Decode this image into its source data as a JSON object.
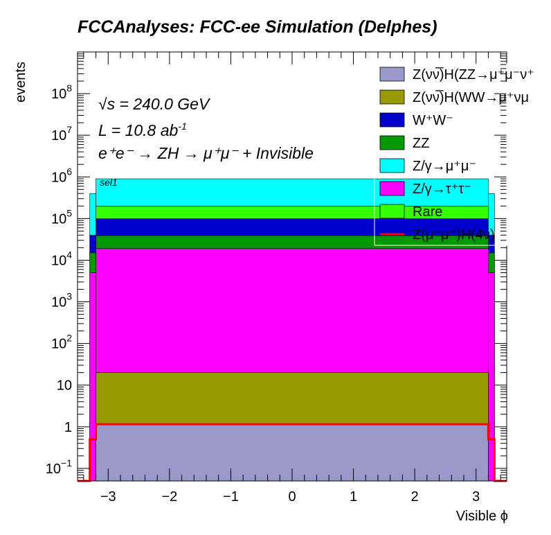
{
  "chart_data": {
    "type": "area",
    "stacked": true,
    "title": "FCCAnalyses: FCC-ee Simulation (Delphes)",
    "xlabel": "Visible ϕ",
    "ylabel": "events",
    "xlim": [
      -3.5,
      3.5
    ],
    "ylim": [
      0.05,
      1000000000.0
    ],
    "log_y": true,
    "grid": false,
    "legend_position": "top-right",
    "x_ticks": [
      -3,
      -2,
      -1,
      0,
      1,
      2,
      3
    ],
    "x_tick_labels": [
      "−3",
      "−2",
      "−1",
      "0",
      "1",
      "2",
      "3"
    ],
    "y_ticks": [
      0.1,
      1,
      10,
      100,
      1000,
      10000,
      100000,
      1000000,
      10000000,
      100000000
    ],
    "y_tick_labels": [
      {
        "base": "10",
        "exp": "−1"
      },
      {
        "base": "1",
        "exp": ""
      },
      {
        "base": "10",
        "exp": ""
      },
      {
        "base": "10",
        "exp": "2"
      },
      {
        "base": "10",
        "exp": "3"
      },
      {
        "base": "10",
        "exp": "4"
      },
      {
        "base": "10",
        "exp": "5"
      },
      {
        "base": "10",
        "exp": "6"
      },
      {
        "base": "10",
        "exp": "7"
      },
      {
        "base": "10",
        "exp": "8"
      }
    ],
    "annotations": {
      "sqrt_s_sym": "√s",
      "sqrt_s_val": " = 240.0 GeV",
      "lumi_main": "L = 10.8 ab",
      "lumi_exp": "-1",
      "process": "e⁺e⁻ → ZH → μ⁺μ⁻ + Invisible",
      "selection": "sel1"
    },
    "edge_bins": {
      "x_ranges": [
        [
          -3.3,
          -3.2
        ],
        [
          3.2,
          3.3
        ]
      ],
      "stack_totals": [
        400000,
        400000
      ],
      "z_gamma_tautau_top": 5000,
      "ww_top": 40000,
      "zz_top": 15000,
      "signal": 0.5
    },
    "central_range": [
      -3.2,
      3.2
    ],
    "series": [
      {
        "name": "Z(νν̅)H(ZZ→μ⁺μ⁻ν⁺ν⁻)",
        "legend": "Z(νν̅)H(ZZ→μ⁺μ⁻ν⁺",
        "color": "#9999cc",
        "value": 1.15
      },
      {
        "name": "Z(νν̅)H(WW→μ⁺νμ⁻ν)",
        "legend": "Z(νν̅)H(WW→μ⁺νμ",
        "color": "#999900",
        "value": 19
      },
      {
        "name": "Z/γ→τ⁺τ⁻",
        "legend": "Z/γ→τ⁺τ⁻",
        "color": "#ff00ff",
        "value": 19000
      },
      {
        "name": "ZZ",
        "legend": "ZZ",
        "color": "#009900",
        "value": 20000
      },
      {
        "name": "W⁺W⁻",
        "legend": "W⁺W⁻",
        "color": "#0000cc",
        "value": 60000
      },
      {
        "name": "Rare",
        "legend": "Rare",
        "color": "#33ff00",
        "value": 100000
      },
      {
        "name": "Z/γ→μ⁺μ⁻",
        "legend": "Z/γ→μ⁺μ⁻",
        "color": "#00ffff",
        "value": 700000
      }
    ],
    "signal": {
      "name": "Z(μ⁻μ⁺)H(4ν)",
      "legend": "Z(μ⁻μ⁺)H(4ν)",
      "color": "#ff0000",
      "value": 1.15
    },
    "legend_order": [
      "Z(νν̅)H(ZZ→μ⁺μ⁻ν⁺ν⁻)",
      "Z(νν̅)H(WW→μ⁺νμ⁻ν)",
      "W⁺W⁻",
      "ZZ",
      "Z/γ→μ⁺μ⁻",
      "Z/γ→τ⁺τ⁻",
      "Rare",
      "Z(μ⁻μ⁺)H(4ν)"
    ]
  }
}
